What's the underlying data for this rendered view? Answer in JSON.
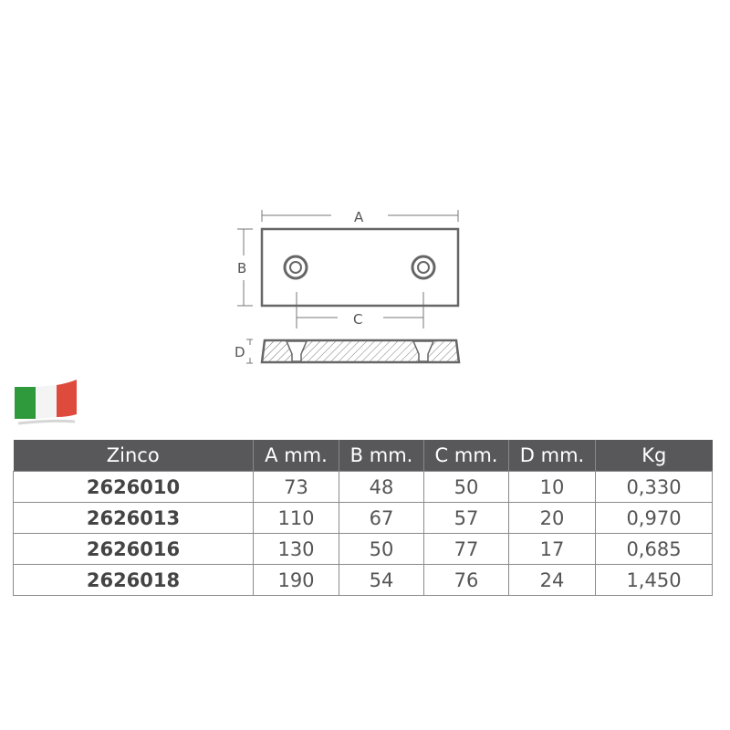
{
  "drawing": {
    "labels": {
      "a": "A",
      "b": "B",
      "c": "C",
      "d": "D"
    }
  },
  "flag": {
    "icon": "italy-flag-icon",
    "colors": [
      "#2e9a3c",
      "#ffffff",
      "#d9342b"
    ]
  },
  "table": {
    "header_color": "#58585a",
    "headers": [
      "Zinco",
      "A mm.",
      "B mm.",
      "C mm.",
      "D mm.",
      "Kg"
    ],
    "rows": [
      [
        "2626010",
        "73",
        "48",
        "50",
        "10",
        "0,330"
      ],
      [
        "2626013",
        "110",
        "67",
        "57",
        "20",
        "0,970"
      ],
      [
        "2626016",
        "130",
        "50",
        "77",
        "17",
        "0,685"
      ],
      [
        "2626018",
        "190",
        "54",
        "76",
        "24",
        "1,450"
      ]
    ]
  }
}
